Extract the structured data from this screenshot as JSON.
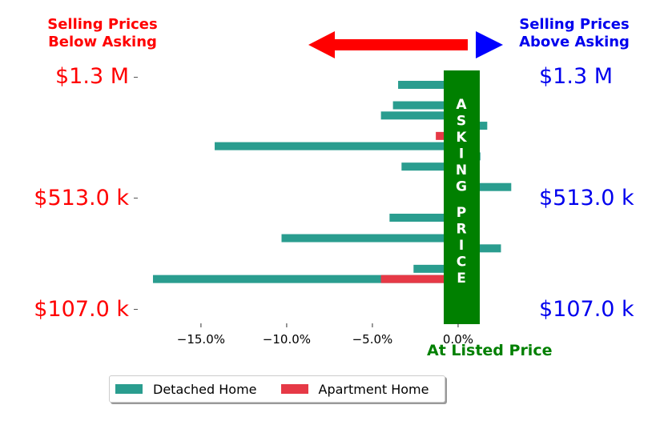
{
  "header": {
    "left_line1": "Selling Prices",
    "left_line2": "Below Asking",
    "right_line1": "Selling Prices",
    "right_line2": "Above Asking",
    "left_color": "#ff0000",
    "right_color": "#0000ee"
  },
  "price_labels": {
    "left": [
      "$1.3 M",
      "$513.0 k",
      "$107.0 k"
    ],
    "right": [
      "$1.3 M",
      "$513.0 k",
      "$107.0 k"
    ]
  },
  "asking_label": "ASKING PRICE",
  "listed_label": "At Listed Price",
  "colors": {
    "detached": "#2a9d8f",
    "apartment": "#e63946",
    "asking": "#008000",
    "left_arrow": "#ff0000",
    "right_arrow": "#0000ff"
  },
  "chart_data": {
    "type": "bar",
    "orientation": "horizontal",
    "xlim": [
      -18.5,
      3.6
    ],
    "xticks": [
      -15,
      -10,
      -5,
      0
    ],
    "xtick_labels": [
      "−15.0%",
      "−10.0%",
      "−5.0%",
      "0.0%"
    ],
    "series": [
      {
        "name": "Detached Home",
        "values": [
          -3.5,
          1.2,
          -3.8,
          -4.5,
          1.7,
          1.2,
          -14.2,
          1.3,
          -3.3,
          1.2,
          3.1,
          1.2,
          1.2,
          -4.0,
          1.2,
          -10.3,
          2.5,
          1.2,
          -2.6,
          -17.8
        ]
      },
      {
        "name": "Apartment Home",
        "values": [
          0,
          0,
          0,
          0,
          0,
          -1.3,
          0,
          0,
          0,
          0,
          0,
          0,
          0,
          0,
          0,
          0,
          0,
          0,
          0,
          -4.5
        ]
      }
    ]
  },
  "legend": {
    "detached_label": "Detached Home",
    "apartment_label": "Apartment Home"
  }
}
